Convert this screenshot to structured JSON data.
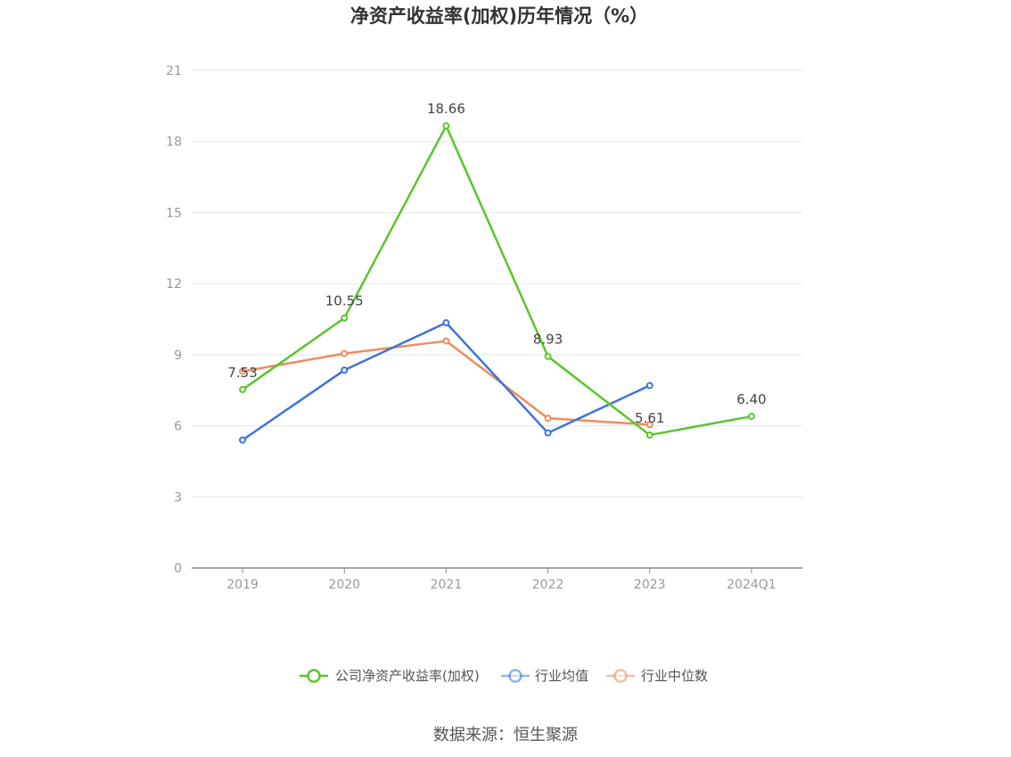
{
  "chart_data": {
    "type": "line",
    "title": "净资产收益率(加权)历年情况（%）",
    "categories": [
      "2019",
      "2020",
      "2021",
      "2022",
      "2023",
      "2024Q1"
    ],
    "ylim": [
      0,
      21
    ],
    "yticks": [
      0,
      3,
      6,
      9,
      12,
      15,
      18,
      21
    ],
    "grid": true,
    "legend_position": "bottom",
    "series": [
      {
        "name": "公司净资产收益率(加权)",
        "color": "#5ac62a",
        "values": [
          7.53,
          10.55,
          18.66,
          8.93,
          5.61,
          6.4
        ],
        "labels": [
          "7.53",
          "10.55",
          "18.66",
          "8.93",
          "5.61",
          "6.40"
        ]
      },
      {
        "name": "行业均值",
        "color": "#3d74db",
        "values": [
          5.4,
          8.35,
          10.35,
          5.7,
          7.7,
          null
        ]
      },
      {
        "name": "行业中位数",
        "color": "#f08a5d",
        "values": [
          8.3,
          9.05,
          9.58,
          6.32,
          6.05,
          null
        ]
      }
    ]
  },
  "source": "数据来源：恒生聚源"
}
